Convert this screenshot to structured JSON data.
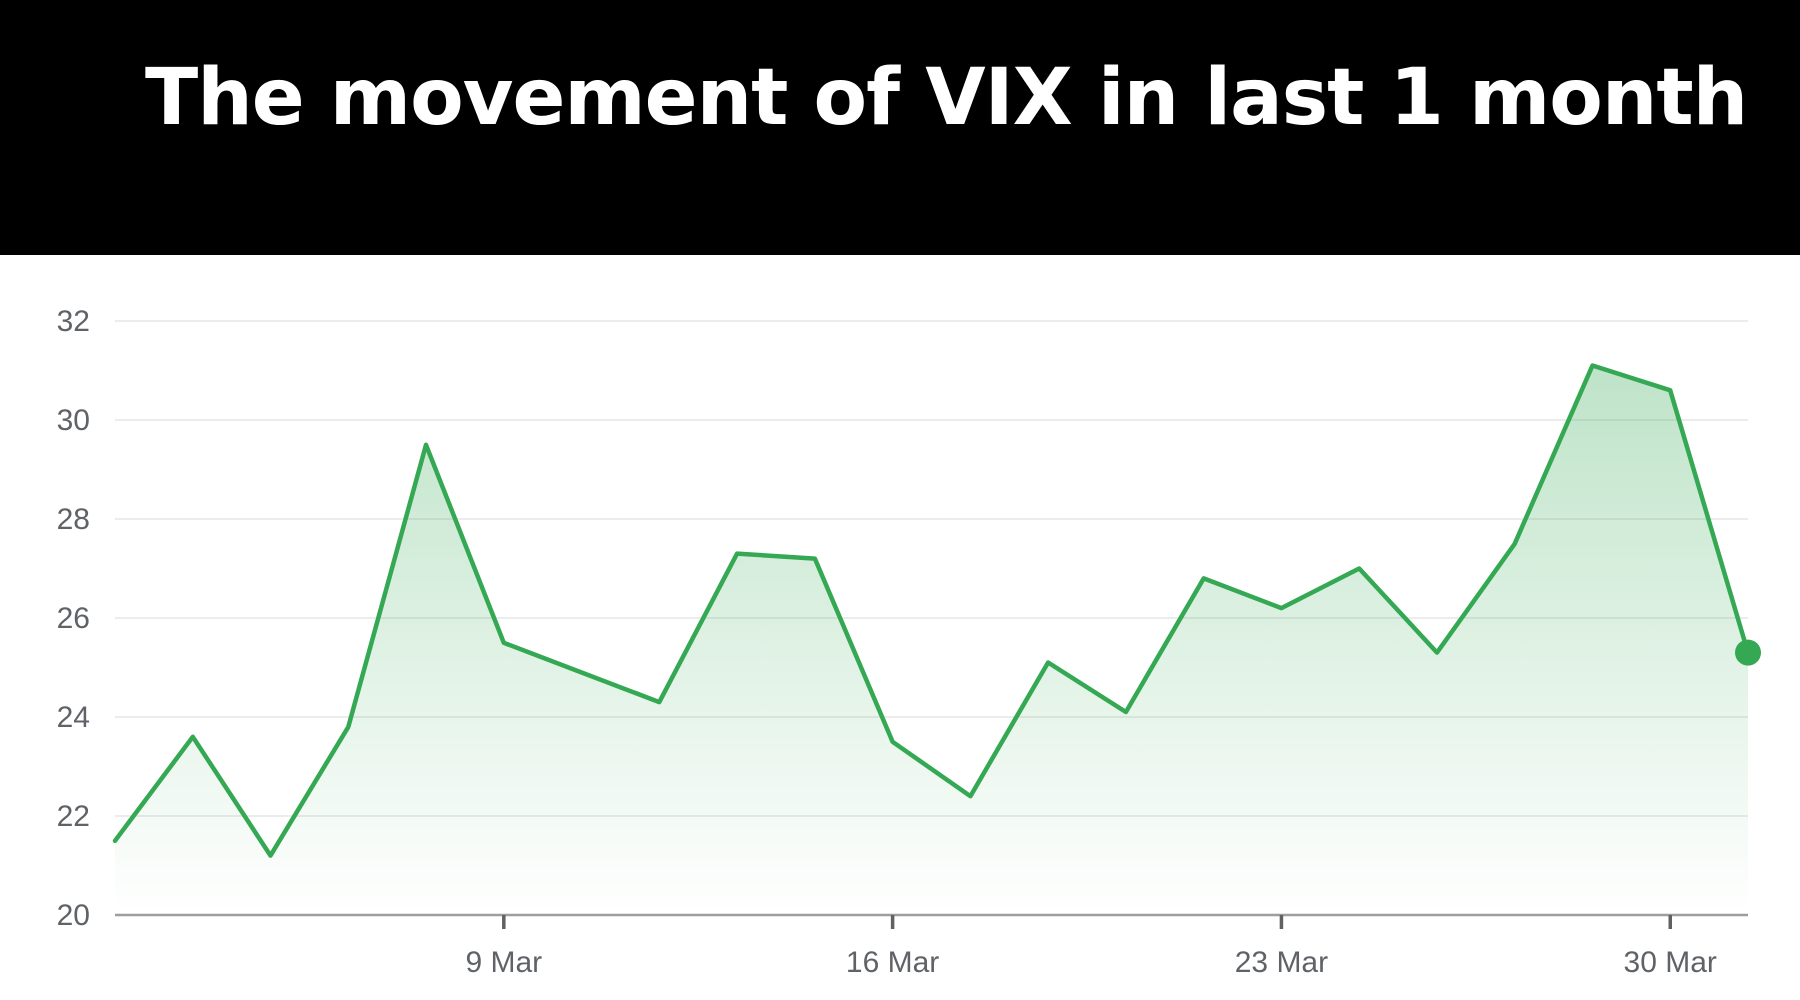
{
  "header": {
    "title": "The movement of VIX in last 1 month"
  },
  "chart_data": {
    "type": "area",
    "title": "The movement of VIX in last 1 month",
    "xlabel": "",
    "ylabel": "",
    "x_unit": "day (March)",
    "ylim": [
      20,
      32
    ],
    "xlim": [
      2,
      31
    ],
    "yticks": [
      20,
      22,
      24,
      26,
      28,
      30,
      32
    ],
    "xticks": [
      {
        "x": 9,
        "label": "9 Mar"
      },
      {
        "x": 16,
        "label": "16 Mar"
      },
      {
        "x": 23,
        "label": "23 Mar"
      },
      {
        "x": 30,
        "label": "30 Mar"
      }
    ],
    "grid": true,
    "legend": "none",
    "series": [
      {
        "color": "#34a853",
        "fill": "#34a853",
        "points": [
          {
            "x": 2,
            "y": 21.5
          },
          {
            "x": 3,
            "y": 23.6
          },
          {
            "x": 4,
            "y": 21.2
          },
          {
            "x": 5,
            "y": 23.8
          },
          {
            "x": 6,
            "y": 29.5
          },
          {
            "x": 7,
            "y": 25.5
          },
          {
            "x": 8,
            "y": 24.9
          },
          {
            "x": 9,
            "y": 24.3
          },
          {
            "x": 10,
            "y": 27.3
          },
          {
            "x": 11,
            "y": 27.2
          },
          {
            "x": 12,
            "y": 23.5
          },
          {
            "x": 13,
            "y": 22.4
          },
          {
            "x": 14,
            "y": 25.1
          },
          {
            "x": 15,
            "y": 24.1
          },
          {
            "x": 16,
            "y": 26.8
          },
          {
            "x": 17,
            "y": 26.2
          },
          {
            "x": 18,
            "y": 27.0
          },
          {
            "x": 19,
            "y": 25.3
          },
          {
            "x": 20,
            "y": 27.5
          },
          {
            "x": 21,
            "y": 31.1
          },
          {
            "x": 22,
            "y": 30.6
          },
          {
            "x": 23,
            "y": 25.3
          }
        ]
      }
    ],
    "x_positions_note_hidden": ""
  }
}
